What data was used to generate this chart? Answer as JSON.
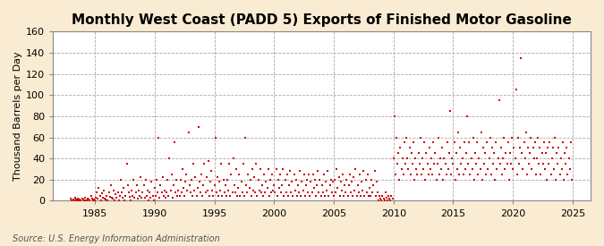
{
  "title": "Monthly West Coast (PADD 5) Exports of Finished Motor Gasoline",
  "ylabel": "Thousand Barrels per Day",
  "source": "Source: U.S. Energy Information Administration",
  "figure_bg": "#faecd2",
  "plot_bg": "#ffffff",
  "marker_color": "#cc0000",
  "grid_color": "#aaaaaa",
  "xlim": [
    1981.5,
    2026.5
  ],
  "ylim": [
    0,
    160
  ],
  "yticks": [
    0,
    20,
    40,
    60,
    80,
    100,
    120,
    140,
    160
  ],
  "xticks": [
    1985,
    1990,
    1995,
    2000,
    2005,
    2010,
    2015,
    2020,
    2025
  ],
  "title_fontsize": 11,
  "label_fontsize": 8,
  "tick_fontsize": 8,
  "source_fontsize": 7,
  "data_points": [
    [
      1983.0,
      2
    ],
    [
      1983.08,
      0
    ],
    [
      1983.17,
      1
    ],
    [
      1983.25,
      0
    ],
    [
      1983.33,
      3
    ],
    [
      1983.42,
      1
    ],
    [
      1983.5,
      0
    ],
    [
      1983.58,
      2
    ],
    [
      1983.67,
      0
    ],
    [
      1983.75,
      1
    ],
    [
      1983.83,
      0
    ],
    [
      1983.92,
      2
    ],
    [
      1984.0,
      1
    ],
    [
      1984.08,
      0
    ],
    [
      1984.17,
      3
    ],
    [
      1984.25,
      0
    ],
    [
      1984.33,
      0
    ],
    [
      1984.42,
      2
    ],
    [
      1984.5,
      1
    ],
    [
      1984.58,
      0
    ],
    [
      1984.67,
      5
    ],
    [
      1984.75,
      2
    ],
    [
      1984.83,
      0
    ],
    [
      1984.92,
      1
    ],
    [
      1985.0,
      0
    ],
    [
      1985.08,
      3
    ],
    [
      1985.17,
      8
    ],
    [
      1985.25,
      2
    ],
    [
      1985.33,
      12
    ],
    [
      1985.42,
      5
    ],
    [
      1985.5,
      0
    ],
    [
      1985.58,
      7
    ],
    [
      1985.67,
      3
    ],
    [
      1985.75,
      10
    ],
    [
      1985.83,
      2
    ],
    [
      1985.92,
      1
    ],
    [
      1986.0,
      5
    ],
    [
      1986.08,
      0
    ],
    [
      1986.17,
      8
    ],
    [
      1986.25,
      4
    ],
    [
      1986.33,
      15
    ],
    [
      1986.42,
      3
    ],
    [
      1986.5,
      2
    ],
    [
      1986.58,
      10
    ],
    [
      1986.67,
      0
    ],
    [
      1986.75,
      6
    ],
    [
      1986.83,
      3
    ],
    [
      1986.92,
      8
    ],
    [
      1987.0,
      0
    ],
    [
      1987.08,
      5
    ],
    [
      1987.17,
      20
    ],
    [
      1987.25,
      8
    ],
    [
      1987.33,
      3
    ],
    [
      1987.42,
      12
    ],
    [
      1987.5,
      0
    ],
    [
      1987.58,
      5
    ],
    [
      1987.67,
      35
    ],
    [
      1987.75,
      15
    ],
    [
      1987.83,
      8
    ],
    [
      1987.92,
      4
    ],
    [
      1988.0,
      0
    ],
    [
      1988.08,
      10
    ],
    [
      1988.17,
      5
    ],
    [
      1988.25,
      20
    ],
    [
      1988.33,
      3
    ],
    [
      1988.42,
      8
    ],
    [
      1988.5,
      15
    ],
    [
      1988.58,
      2
    ],
    [
      1988.67,
      10
    ],
    [
      1988.75,
      5
    ],
    [
      1988.83,
      22
    ],
    [
      1988.92,
      3
    ],
    [
      1989.0,
      8
    ],
    [
      1989.08,
      15
    ],
    [
      1989.17,
      3
    ],
    [
      1989.25,
      20
    ],
    [
      1989.33,
      5
    ],
    [
      1989.42,
      10
    ],
    [
      1989.5,
      0
    ],
    [
      1989.58,
      8
    ],
    [
      1989.67,
      3
    ],
    [
      1989.75,
      18
    ],
    [
      1989.83,
      5
    ],
    [
      1989.92,
      0
    ],
    [
      1990.0,
      12
    ],
    [
      1990.08,
      5
    ],
    [
      1990.17,
      20
    ],
    [
      1990.25,
      8
    ],
    [
      1990.33,
      60
    ],
    [
      1990.42,
      3
    ],
    [
      1990.5,
      15
    ],
    [
      1990.58,
      8
    ],
    [
      1990.67,
      22
    ],
    [
      1990.75,
      5
    ],
    [
      1990.83,
      10
    ],
    [
      1990.92,
      3
    ],
    [
      1991.0,
      8
    ],
    [
      1991.08,
      20
    ],
    [
      1991.17,
      5
    ],
    [
      1991.25,
      40
    ],
    [
      1991.33,
      10
    ],
    [
      1991.42,
      25
    ],
    [
      1991.5,
      3
    ],
    [
      1991.58,
      15
    ],
    [
      1991.67,
      55
    ],
    [
      1991.75,
      8
    ],
    [
      1991.83,
      20
    ],
    [
      1991.92,
      5
    ],
    [
      1992.0,
      10
    ],
    [
      1992.08,
      5
    ],
    [
      1992.17,
      20
    ],
    [
      1992.25,
      8
    ],
    [
      1992.33,
      30
    ],
    [
      1992.42,
      12
    ],
    [
      1992.5,
      5
    ],
    [
      1992.58,
      18
    ],
    [
      1992.67,
      25
    ],
    [
      1992.75,
      10
    ],
    [
      1992.83,
      65
    ],
    [
      1992.92,
      15
    ],
    [
      1993.0,
      8
    ],
    [
      1993.08,
      20
    ],
    [
      1993.17,
      5
    ],
    [
      1993.25,
      35
    ],
    [
      1993.33,
      10
    ],
    [
      1993.42,
      22
    ],
    [
      1993.5,
      5
    ],
    [
      1993.58,
      12
    ],
    [
      1993.67,
      70
    ],
    [
      1993.75,
      18
    ],
    [
      1993.83,
      8
    ],
    [
      1993.92,
      25
    ],
    [
      1994.0,
      5
    ],
    [
      1994.08,
      15
    ],
    [
      1994.17,
      35
    ],
    [
      1994.25,
      8
    ],
    [
      1994.33,
      22
    ],
    [
      1994.42,
      10
    ],
    [
      1994.5,
      38
    ],
    [
      1994.58,
      5
    ],
    [
      1994.67,
      18
    ],
    [
      1994.75,
      28
    ],
    [
      1994.83,
      10
    ],
    [
      1994.92,
      5
    ],
    [
      1995.0,
      15
    ],
    [
      1995.08,
      60
    ],
    [
      1995.17,
      8
    ],
    [
      1995.25,
      22
    ],
    [
      1995.33,
      5
    ],
    [
      1995.42,
      18
    ],
    [
      1995.5,
      10
    ],
    [
      1995.58,
      35
    ],
    [
      1995.67,
      5
    ],
    [
      1995.75,
      20
    ],
    [
      1995.83,
      8
    ],
    [
      1995.92,
      15
    ],
    [
      1996.0,
      5
    ],
    [
      1996.08,
      20
    ],
    [
      1996.17,
      10
    ],
    [
      1996.25,
      35
    ],
    [
      1996.33,
      5
    ],
    [
      1996.42,
      25
    ],
    [
      1996.5,
      8
    ],
    [
      1996.58,
      40
    ],
    [
      1996.67,
      15
    ],
    [
      1996.75,
      8
    ],
    [
      1996.83,
      30
    ],
    [
      1996.92,
      5
    ],
    [
      1997.0,
      12
    ],
    [
      1997.08,
      25
    ],
    [
      1997.17,
      5
    ],
    [
      1997.25,
      18
    ],
    [
      1997.33,
      8
    ],
    [
      1997.42,
      35
    ],
    [
      1997.5,
      5
    ],
    [
      1997.58,
      60
    ],
    [
      1997.67,
      15
    ],
    [
      1997.75,
      8
    ],
    [
      1997.83,
      25
    ],
    [
      1997.92,
      12
    ],
    [
      1998.0,
      20
    ],
    [
      1998.08,
      5
    ],
    [
      1998.17,
      30
    ],
    [
      1998.25,
      10
    ],
    [
      1998.33,
      22
    ],
    [
      1998.42,
      8
    ],
    [
      1998.5,
      35
    ],
    [
      1998.58,
      5
    ],
    [
      1998.67,
      20
    ],
    [
      1998.75,
      10
    ],
    [
      1998.83,
      30
    ],
    [
      1998.92,
      8
    ],
    [
      1999.0,
      15
    ],
    [
      1999.08,
      5
    ],
    [
      1999.17,
      25
    ],
    [
      1999.25,
      8
    ],
    [
      1999.33,
      18
    ],
    [
      1999.42,
      12
    ],
    [
      1999.5,
      30
    ],
    [
      1999.58,
      5
    ],
    [
      1999.67,
      20
    ],
    [
      1999.75,
      8
    ],
    [
      1999.83,
      25
    ],
    [
      1999.92,
      10
    ],
    [
      2000.0,
      15
    ],
    [
      2000.08,
      8
    ],
    [
      2000.17,
      30
    ],
    [
      2000.25,
      5
    ],
    [
      2000.33,
      20
    ],
    [
      2000.42,
      12
    ],
    [
      2000.5,
      25
    ],
    [
      2000.58,
      8
    ],
    [
      2000.67,
      15
    ],
    [
      2000.75,
      30
    ],
    [
      2000.83,
      5
    ],
    [
      2000.92,
      20
    ],
    [
      2001.0,
      8
    ],
    [
      2001.08,
      25
    ],
    [
      2001.17,
      5
    ],
    [
      2001.25,
      15
    ],
    [
      2001.33,
      28
    ],
    [
      2001.42,
      8
    ],
    [
      2001.5,
      18
    ],
    [
      2001.58,
      5
    ],
    [
      2001.67,
      25
    ],
    [
      2001.75,
      10
    ],
    [
      2001.83,
      20
    ],
    [
      2001.92,
      5
    ],
    [
      2002.0,
      15
    ],
    [
      2002.08,
      8
    ],
    [
      2002.17,
      28
    ],
    [
      2002.25,
      5
    ],
    [
      2002.33,
      18
    ],
    [
      2002.42,
      10
    ],
    [
      2002.5,
      25
    ],
    [
      2002.58,
      5
    ],
    [
      2002.67,
      15
    ],
    [
      2002.75,
      20
    ],
    [
      2002.83,
      8
    ],
    [
      2002.92,
      25
    ],
    [
      2003.0,
      5
    ],
    [
      2003.08,
      18
    ],
    [
      2003.17,
      8
    ],
    [
      2003.25,
      25
    ],
    [
      2003.33,
      12
    ],
    [
      2003.42,
      20
    ],
    [
      2003.5,
      5
    ],
    [
      2003.58,
      15
    ],
    [
      2003.67,
      28
    ],
    [
      2003.75,
      8
    ],
    [
      2003.83,
      20
    ],
    [
      2003.92,
      5
    ],
    [
      2004.0,
      15
    ],
    [
      2004.08,
      8
    ],
    [
      2004.17,
      25
    ],
    [
      2004.25,
      5
    ],
    [
      2004.33,
      18
    ],
    [
      2004.42,
      10
    ],
    [
      2004.5,
      28
    ],
    [
      2004.58,
      5
    ],
    [
      2004.67,
      15
    ],
    [
      2004.75,
      20
    ],
    [
      2004.83,
      8
    ],
    [
      2004.92,
      18
    ],
    [
      2005.0,
      5
    ],
    [
      2005.08,
      20
    ],
    [
      2005.17,
      8
    ],
    [
      2005.25,
      30
    ],
    [
      2005.33,
      12
    ],
    [
      2005.42,
      22
    ],
    [
      2005.5,
      5
    ],
    [
      2005.58,
      18
    ],
    [
      2005.67,
      10
    ],
    [
      2005.75,
      25
    ],
    [
      2005.83,
      5
    ],
    [
      2005.92,
      15
    ],
    [
      2006.0,
      8
    ],
    [
      2006.08,
      20
    ],
    [
      2006.17,
      5
    ],
    [
      2006.25,
      15
    ],
    [
      2006.33,
      25
    ],
    [
      2006.42,
      8
    ],
    [
      2006.5,
      18
    ],
    [
      2006.58,
      5
    ],
    [
      2006.67,
      22
    ],
    [
      2006.75,
      10
    ],
    [
      2006.83,
      30
    ],
    [
      2006.92,
      5
    ],
    [
      2007.0,
      15
    ],
    [
      2007.08,
      8
    ],
    [
      2007.17,
      25
    ],
    [
      2007.25,
      5
    ],
    [
      2007.33,
      18
    ],
    [
      2007.42,
      10
    ],
    [
      2007.5,
      28
    ],
    [
      2007.58,
      5
    ],
    [
      2007.67,
      20
    ],
    [
      2007.75,
      8
    ],
    [
      2007.83,
      25
    ],
    [
      2007.92,
      5
    ],
    [
      2008.0,
      12
    ],
    [
      2008.08,
      5
    ],
    [
      2008.17,
      20
    ],
    [
      2008.25,
      8
    ],
    [
      2008.33,
      15
    ],
    [
      2008.42,
      28
    ],
    [
      2008.5,
      5
    ],
    [
      2008.58,
      18
    ],
    [
      2008.67,
      8
    ],
    [
      2008.75,
      0
    ],
    [
      2008.83,
      5
    ],
    [
      2008.92,
      2
    ],
    [
      2009.0,
      0
    ],
    [
      2009.08,
      5
    ],
    [
      2009.17,
      2
    ],
    [
      2009.25,
      0
    ],
    [
      2009.33,
      8
    ],
    [
      2009.42,
      3
    ],
    [
      2009.5,
      0
    ],
    [
      2009.58,
      5
    ],
    [
      2009.67,
      2
    ],
    [
      2009.75,
      0
    ],
    [
      2009.83,
      5
    ],
    [
      2009.92,
      2
    ],
    [
      2010.0,
      40
    ],
    [
      2010.08,
      80
    ],
    [
      2010.17,
      25
    ],
    [
      2010.25,
      60
    ],
    [
      2010.33,
      35
    ],
    [
      2010.42,
      45
    ],
    [
      2010.5,
      20
    ],
    [
      2010.58,
      50
    ],
    [
      2010.67,
      30
    ],
    [
      2010.75,
      40
    ],
    [
      2010.83,
      25
    ],
    [
      2010.92,
      55
    ],
    [
      2011.0,
      35
    ],
    [
      2011.08,
      60
    ],
    [
      2011.17,
      40
    ],
    [
      2011.25,
      30
    ],
    [
      2011.33,
      50
    ],
    [
      2011.42,
      25
    ],
    [
      2011.5,
      45
    ],
    [
      2011.58,
      35
    ],
    [
      2011.67,
      55
    ],
    [
      2011.75,
      20
    ],
    [
      2011.83,
      40
    ],
    [
      2011.92,
      30
    ],
    [
      2012.0,
      25
    ],
    [
      2012.08,
      45
    ],
    [
      2012.17,
      35
    ],
    [
      2012.25,
      60
    ],
    [
      2012.33,
      25
    ],
    [
      2012.42,
      40
    ],
    [
      2012.5,
      30
    ],
    [
      2012.58,
      55
    ],
    [
      2012.67,
      20
    ],
    [
      2012.75,
      45
    ],
    [
      2012.83,
      35
    ],
    [
      2012.92,
      25
    ],
    [
      2013.0,
      50
    ],
    [
      2013.08,
      30
    ],
    [
      2013.17,
      40
    ],
    [
      2013.25,
      25
    ],
    [
      2013.33,
      55
    ],
    [
      2013.42,
      35
    ],
    [
      2013.5,
      45
    ],
    [
      2013.58,
      20
    ],
    [
      2013.67,
      35
    ],
    [
      2013.75,
      60
    ],
    [
      2013.83,
      25
    ],
    [
      2013.92,
      40
    ],
    [
      2014.0,
      30
    ],
    [
      2014.08,
      50
    ],
    [
      2014.17,
      20
    ],
    [
      2014.25,
      40
    ],
    [
      2014.33,
      35
    ],
    [
      2014.42,
      25
    ],
    [
      2014.5,
      55
    ],
    [
      2014.58,
      30
    ],
    [
      2014.67,
      45
    ],
    [
      2014.75,
      85
    ],
    [
      2014.83,
      25
    ],
    [
      2014.92,
      40
    ],
    [
      2015.0,
      35
    ],
    [
      2015.08,
      55
    ],
    [
      2015.17,
      20
    ],
    [
      2015.25,
      45
    ],
    [
      2015.33,
      30
    ],
    [
      2015.42,
      65
    ],
    [
      2015.5,
      25
    ],
    [
      2015.58,
      50
    ],
    [
      2015.67,
      35
    ],
    [
      2015.75,
      40
    ],
    [
      2015.83,
      25
    ],
    [
      2015.92,
      55
    ],
    [
      2016.0,
      30
    ],
    [
      2016.08,
      45
    ],
    [
      2016.17,
      80
    ],
    [
      2016.25,
      35
    ],
    [
      2016.33,
      55
    ],
    [
      2016.42,
      25
    ],
    [
      2016.5,
      40
    ],
    [
      2016.58,
      30
    ],
    [
      2016.67,
      60
    ],
    [
      2016.75,
      20
    ],
    [
      2016.83,
      45
    ],
    [
      2016.92,
      35
    ],
    [
      2017.0,
      55
    ],
    [
      2017.08,
      25
    ],
    [
      2017.17,
      40
    ],
    [
      2017.25,
      30
    ],
    [
      2017.33,
      65
    ],
    [
      2017.42,
      20
    ],
    [
      2017.5,
      50
    ],
    [
      2017.58,
      35
    ],
    [
      2017.67,
      45
    ],
    [
      2017.75,
      25
    ],
    [
      2017.83,
      55
    ],
    [
      2017.92,
      30
    ],
    [
      2018.0,
      40
    ],
    [
      2018.08,
      60
    ],
    [
      2018.17,
      25
    ],
    [
      2018.25,
      50
    ],
    [
      2018.33,
      35
    ],
    [
      2018.42,
      45
    ],
    [
      2018.5,
      20
    ],
    [
      2018.58,
      55
    ],
    [
      2018.67,
      30
    ],
    [
      2018.75,
      40
    ],
    [
      2018.83,
      95
    ],
    [
      2018.92,
      35
    ],
    [
      2019.0,
      50
    ],
    [
      2019.08,
      25
    ],
    [
      2019.17,
      40
    ],
    [
      2019.25,
      60
    ],
    [
      2019.33,
      30
    ],
    [
      2019.42,
      45
    ],
    [
      2019.5,
      35
    ],
    [
      2019.58,
      55
    ],
    [
      2019.67,
      20
    ],
    [
      2019.75,
      45
    ],
    [
      2019.83,
      35
    ],
    [
      2019.92,
      60
    ],
    [
      2020.0,
      30
    ],
    [
      2020.08,
      50
    ],
    [
      2020.17,
      40
    ],
    [
      2020.25,
      105
    ],
    [
      2020.33,
      25
    ],
    [
      2020.42,
      60
    ],
    [
      2020.5,
      35
    ],
    [
      2020.58,
      50
    ],
    [
      2020.67,
      135
    ],
    [
      2020.75,
      45
    ],
    [
      2020.83,
      30
    ],
    [
      2020.92,
      55
    ],
    [
      2021.0,
      40
    ],
    [
      2021.08,
      65
    ],
    [
      2021.17,
      25
    ],
    [
      2021.25,
      50
    ],
    [
      2021.33,
      35
    ],
    [
      2021.42,
      45
    ],
    [
      2021.5,
      60
    ],
    [
      2021.58,
      30
    ],
    [
      2021.67,
      50
    ],
    [
      2021.75,
      40
    ],
    [
      2021.83,
      55
    ],
    [
      2021.92,
      25
    ],
    [
      2022.0,
      40
    ],
    [
      2022.08,
      60
    ],
    [
      2022.17,
      35
    ],
    [
      2022.25,
      50
    ],
    [
      2022.33,
      25
    ],
    [
      2022.42,
      45
    ],
    [
      2022.5,
      35
    ],
    [
      2022.58,
      55
    ],
    [
      2022.67,
      30
    ],
    [
      2022.75,
      45
    ],
    [
      2022.83,
      20
    ],
    [
      2022.92,
      50
    ],
    [
      2023.0,
      35
    ],
    [
      2023.08,
      55
    ],
    [
      2023.17,
      25
    ],
    [
      2023.25,
      40
    ],
    [
      2023.33,
      50
    ],
    [
      2023.42,
      30
    ],
    [
      2023.5,
      60
    ],
    [
      2023.58,
      20
    ],
    [
      2023.67,
      45
    ],
    [
      2023.75,
      35
    ],
    [
      2023.83,
      50
    ],
    [
      2023.92,
      25
    ],
    [
      2024.0,
      40
    ],
    [
      2024.08,
      30
    ],
    [
      2024.17,
      55
    ],
    [
      2024.25,
      20
    ],
    [
      2024.33,
      45
    ],
    [
      2024.42,
      35
    ],
    [
      2024.5,
      50
    ],
    [
      2024.58,
      25
    ],
    [
      2024.67,
      40
    ],
    [
      2024.75,
      30
    ],
    [
      2024.83,
      55
    ],
    [
      2024.92,
      20
    ]
  ]
}
